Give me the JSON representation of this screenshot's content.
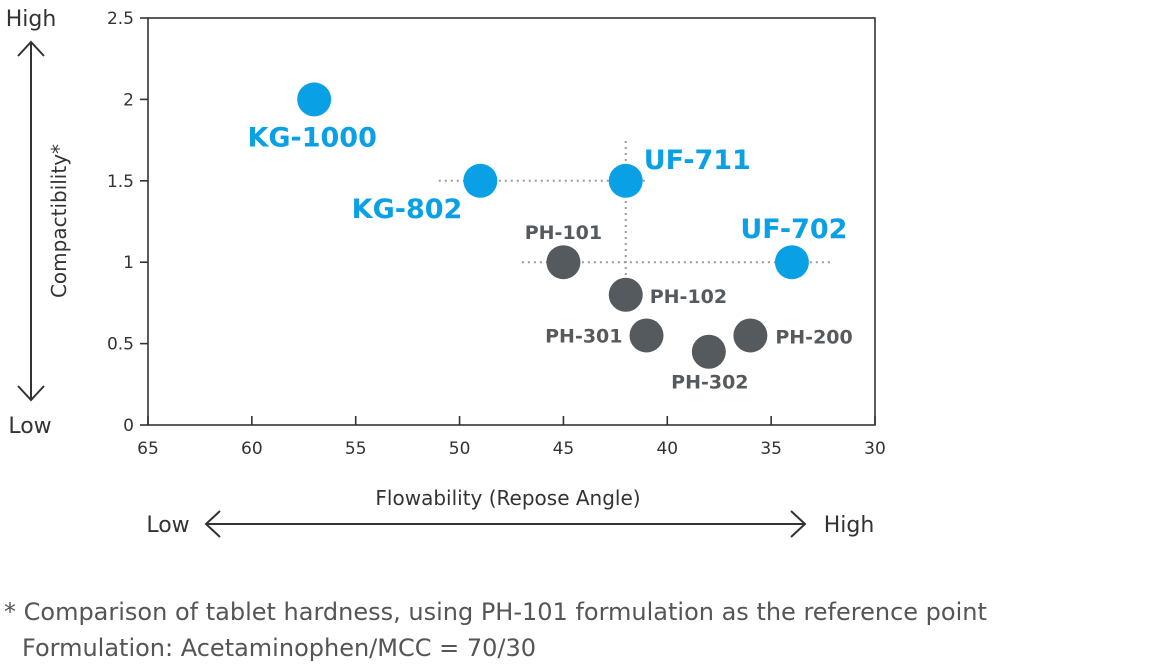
{
  "colors": {
    "highlight": "#0aa0e6",
    "reference": "#555a5f",
    "axis": "#333333",
    "guide": "#9a9a9a"
  },
  "axes": {
    "y_title": "Compactibility*",
    "x_title": "Flowability (Repose Angle)",
    "y_high": "High",
    "y_low": "Low",
    "x_low": "Low",
    "x_high": "High"
  },
  "footnotes": {
    "line1": "* Comparison of tablet hardness, using PH-101 formulation as the reference point",
    "line2": "Formulation: Acetaminophen/MCC = 70/30"
  },
  "chart_data": {
    "type": "scatter",
    "xlabel": "Flowability (Repose Angle)",
    "ylabel": "Compactibility*",
    "xlim": [
      65,
      30
    ],
    "ylim": [
      0,
      2.5
    ],
    "x_reversed": true,
    "x_ticks": [
      65,
      60,
      55,
      50,
      45,
      40,
      35,
      30
    ],
    "y_ticks": [
      0,
      0.5,
      1,
      1.5,
      2,
      2.5
    ],
    "y_tick_labels": [
      "0",
      "0.5",
      "1",
      "1.5",
      "2",
      "2.5"
    ],
    "grid": false,
    "points": [
      {
        "label": "KG-1000",
        "x": 57,
        "y": 2.0,
        "group": "highlight"
      },
      {
        "label": "KG-802",
        "x": 49,
        "y": 1.5,
        "group": "highlight"
      },
      {
        "label": "UF-711",
        "x": 42,
        "y": 1.5,
        "group": "highlight"
      },
      {
        "label": "UF-702",
        "x": 34,
        "y": 1.0,
        "group": "highlight"
      },
      {
        "label": "PH-101",
        "x": 45,
        "y": 1.0,
        "group": "reference"
      },
      {
        "label": "PH-102",
        "x": 42,
        "y": 0.8,
        "group": "reference"
      },
      {
        "label": "PH-301",
        "x": 41,
        "y": 0.55,
        "group": "reference"
      },
      {
        "label": "PH-302",
        "x": 38,
        "y": 0.45,
        "group": "reference"
      },
      {
        "label": "PH-200",
        "x": 36,
        "y": 0.55,
        "group": "reference"
      }
    ],
    "guide_lines": [
      {
        "orientation": "horizontal",
        "y": 1.5,
        "x_from": 51,
        "x_to": 41
      },
      {
        "orientation": "horizontal",
        "y": 1.0,
        "x_from": 47,
        "x_to": 32
      },
      {
        "orientation": "vertical",
        "x": 42,
        "y_from": 0.7,
        "y_to": 1.75
      }
    ]
  }
}
